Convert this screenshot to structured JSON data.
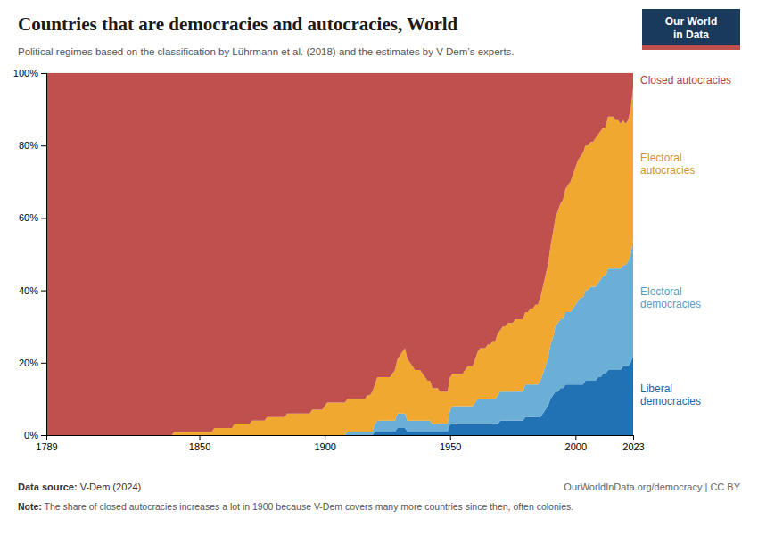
{
  "chart_data": {
    "type": "area",
    "stacked": true,
    "title": "Countries that are democracies and autocracies, World",
    "subtitle": "Political regimes based on the classification by Lührmann et al. (2018) and the estimates by V-Dem’s experts.",
    "annotations": [
      "Data source: V-Dem (2024)",
      "OurWorldInData.org/democracy | CC BY",
      "Note: The share of closed autocracies increases a lot in 1900 because V-Dem covers many more countries since then, often colonies.",
      "Our World",
      "in Data"
    ],
    "x": [
      1789,
      1790,
      1791,
      1792,
      1793,
      1794,
      1795,
      1796,
      1797,
      1798,
      1799,
      1800,
      1801,
      1802,
      1803,
      1804,
      1805,
      1806,
      1807,
      1808,
      1809,
      1810,
      1811,
      1812,
      1813,
      1814,
      1815,
      1816,
      1817,
      1818,
      1819,
      1820,
      1821,
      1822,
      1823,
      1824,
      1825,
      1826,
      1827,
      1828,
      1829,
      1830,
      1831,
      1832,
      1833,
      1834,
      1835,
      1836,
      1837,
      1838,
      1839,
      1840,
      1841,
      1842,
      1843,
      1844,
      1845,
      1846,
      1847,
      1848,
      1849,
      1850,
      1851,
      1852,
      1853,
      1854,
      1855,
      1856,
      1857,
      1858,
      1859,
      1860,
      1861,
      1862,
      1863,
      1864,
      1865,
      1866,
      1867,
      1868,
      1869,
      1870,
      1871,
      1872,
      1873,
      1874,
      1875,
      1876,
      1877,
      1878,
      1879,
      1880,
      1881,
      1882,
      1883,
      1884,
      1885,
      1886,
      1887,
      1888,
      1889,
      1890,
      1891,
      1892,
      1893,
      1894,
      1895,
      1896,
      1897,
      1898,
      1899,
      1900,
      1901,
      1902,
      1903,
      1904,
      1905,
      1906,
      1907,
      1908,
      1909,
      1910,
      1911,
      1912,
      1913,
      1914,
      1915,
      1916,
      1917,
      1918,
      1919,
      1920,
      1921,
      1922,
      1923,
      1924,
      1925,
      1926,
      1927,
      1928,
      1929,
      1930,
      1931,
      1932,
      1933,
      1934,
      1935,
      1936,
      1937,
      1938,
      1939,
      1940,
      1941,
      1942,
      1943,
      1944,
      1945,
      1946,
      1947,
      1948,
      1949,
      1950,
      1951,
      1952,
      1953,
      1954,
      1955,
      1956,
      1957,
      1958,
      1959,
      1960,
      1961,
      1962,
      1963,
      1964,
      1965,
      1966,
      1967,
      1968,
      1969,
      1970,
      1971,
      1972,
      1973,
      1974,
      1975,
      1976,
      1977,
      1978,
      1979,
      1980,
      1981,
      1982,
      1983,
      1984,
      1985,
      1986,
      1987,
      1988,
      1989,
      1990,
      1991,
      1992,
      1993,
      1994,
      1995,
      1996,
      1997,
      1998,
      1999,
      2000,
      2001,
      2002,
      2003,
      2004,
      2005,
      2006,
      2007,
      2008,
      2009,
      2010,
      2011,
      2012,
      2013,
      2014,
      2015,
      2016,
      2017,
      2018,
      2019,
      2020,
      2021,
      2022,
      2023
    ],
    "series": [
      {
        "name": "Liberal\ndemocracies",
        "color": "#2171b5",
        "values": [
          0,
          0,
          0,
          0,
          0,
          0,
          0,
          0,
          0,
          0,
          0,
          0,
          0,
          0,
          0,
          0,
          0,
          0,
          0,
          0,
          0,
          0,
          0,
          0,
          0,
          0,
          0,
          0,
          0,
          0,
          0,
          0,
          0,
          0,
          0,
          0,
          0,
          0,
          0,
          0,
          0,
          0,
          0,
          0,
          0,
          0,
          0,
          0,
          0,
          0,
          0,
          0,
          0,
          0,
          0,
          0,
          0,
          0,
          0,
          0,
          0,
          0,
          0,
          0,
          0,
          0,
          0,
          0,
          0,
          0,
          0,
          0,
          0,
          0,
          0,
          0,
          0,
          0,
          0,
          0,
          0,
          0,
          0,
          0,
          0,
          0,
          0,
          0,
          0,
          0,
          0,
          0,
          0,
          0,
          0,
          0,
          0,
          0,
          0,
          0,
          0,
          0,
          0,
          0,
          0,
          0,
          0,
          0,
          0,
          0,
          0,
          0,
          0,
          0,
          0,
          0,
          0,
          0,
          0,
          0,
          0,
          0,
          0,
          0,
          0,
          0,
          0,
          0,
          0,
          0,
          0,
          1,
          1,
          1,
          1,
          1,
          1,
          1,
          1,
          1,
          2,
          2,
          2,
          2,
          1,
          1,
          1,
          1,
          1,
          1,
          1,
          1,
          1,
          1,
          1,
          1,
          1,
          1,
          1,
          1,
          1,
          3,
          3,
          3,
          3,
          3,
          3,
          3,
          3,
          3,
          3,
          3,
          3,
          3,
          3,
          3,
          3,
          3,
          3,
          3,
          3,
          4,
          4,
          4,
          4,
          4,
          4,
          4,
          4,
          4,
          4,
          5,
          5,
          5,
          5,
          5,
          5,
          5,
          6,
          7,
          8,
          10,
          11,
          12,
          12,
          13,
          13,
          14,
          14,
          14,
          14,
          14,
          14,
          14,
          14,
          15,
          15,
          15,
          15,
          15,
          16,
          16,
          17,
          17,
          18,
          18,
          18,
          18,
          18,
          18,
          19,
          19,
          19,
          20,
          22
        ]
      },
      {
        "name": "Electoral\ndemocracies",
        "color": "#6baed6",
        "values": [
          0,
          0,
          0,
          0,
          0,
          0,
          0,
          0,
          0,
          0,
          0,
          0,
          0,
          0,
          0,
          0,
          0,
          0,
          0,
          0,
          0,
          0,
          0,
          0,
          0,
          0,
          0,
          0,
          0,
          0,
          0,
          0,
          0,
          0,
          0,
          0,
          0,
          0,
          0,
          0,
          0,
          0,
          0,
          0,
          0,
          0,
          0,
          0,
          0,
          0,
          0,
          0,
          0,
          0,
          0,
          0,
          0,
          0,
          0,
          0,
          0,
          0,
          0,
          0,
          0,
          0,
          0,
          0,
          0,
          0,
          0,
          0,
          0,
          0,
          0,
          0,
          0,
          0,
          0,
          0,
          0,
          0,
          0,
          0,
          0,
          0,
          0,
          0,
          0,
          0,
          0,
          0,
          0,
          0,
          0,
          0,
          0,
          0,
          0,
          0,
          0,
          0,
          0,
          0,
          0,
          0,
          0,
          0,
          0,
          0,
          0,
          0,
          0,
          0,
          0,
          0,
          0,
          0,
          0,
          0,
          1,
          1,
          1,
          1,
          1,
          1,
          1,
          1,
          1,
          1,
          1,
          2,
          3,
          3,
          3,
          3,
          3,
          3,
          3,
          3,
          4,
          4,
          4,
          4,
          3,
          3,
          3,
          3,
          3,
          3,
          3,
          3,
          3,
          3,
          2,
          2,
          2,
          2,
          2,
          2,
          2,
          4,
          5,
          5,
          5,
          5,
          5,
          5,
          5,
          5,
          5,
          6,
          7,
          7,
          7,
          7,
          7,
          7,
          7,
          7,
          8,
          8,
          8,
          8,
          8,
          8,
          8,
          8,
          8,
          8,
          8,
          9,
          9,
          9,
          9,
          9,
          9,
          10,
          11,
          12,
          13,
          15,
          16,
          18,
          19,
          19,
          19,
          20,
          20,
          20,
          21,
          22,
          23,
          24,
          24,
          25,
          25,
          26,
          26,
          26,
          26,
          27,
          27,
          27,
          28,
          28,
          28,
          28,
          28,
          28,
          28,
          28,
          29,
          30,
          32
        ]
      },
      {
        "name": "Electoral\nautocracies",
        "color": "#f0a830",
        "values": [
          0,
          0,
          0,
          0,
          0,
          0,
          0,
          0,
          0,
          0,
          0,
          0,
          0,
          0,
          0,
          0,
          0,
          0,
          0,
          0,
          0,
          0,
          0,
          0,
          0,
          0,
          0,
          0,
          0,
          0,
          0,
          0,
          0,
          0,
          0,
          0,
          0,
          0,
          0,
          0,
          0,
          0,
          0,
          0,
          0,
          0,
          0,
          0,
          0,
          0,
          0,
          1,
          1,
          1,
          1,
          1,
          1,
          1,
          1,
          1,
          1,
          1,
          1,
          1,
          1,
          1,
          1,
          2,
          2,
          2,
          2,
          2,
          2,
          2,
          2,
          3,
          3,
          3,
          3,
          3,
          3,
          3,
          4,
          4,
          4,
          4,
          4,
          4,
          5,
          5,
          5,
          5,
          5,
          5,
          5,
          5,
          6,
          6,
          6,
          6,
          6,
          6,
          6,
          6,
          6,
          6,
          7,
          7,
          7,
          7,
          7,
          8,
          9,
          9,
          9,
          9,
          9,
          9,
          9,
          9,
          9,
          9,
          9,
          9,
          9,
          9,
          9,
          9,
          10,
          10,
          11,
          11,
          12,
          12,
          12,
          12,
          12,
          12,
          13,
          14,
          15,
          16,
          17,
          18,
          17,
          16,
          15,
          14,
          14,
          14,
          13,
          12,
          11,
          11,
          10,
          10,
          10,
          9,
          9,
          9,
          9,
          9,
          9,
          9,
          9,
          9,
          9,
          10,
          11,
          11,
          11,
          12,
          13,
          14,
          14,
          14,
          15,
          15,
          16,
          16,
          17,
          17,
          18,
          18,
          19,
          19,
          19,
          20,
          20,
          20,
          20,
          20,
          20,
          21,
          21,
          22,
          22,
          23,
          24,
          25,
          26,
          27,
          29,
          30,
          31,
          32,
          33,
          34,
          35,
          36,
          37,
          38,
          39,
          39,
          40,
          40,
          40,
          40,
          40,
          41,
          41,
          41,
          41,
          41,
          42,
          42,
          42,
          41,
          41,
          40,
          40,
          39,
          39,
          40,
          42
        ]
      },
      {
        "name": "Closed autocracies",
        "color": "#c0504d",
        "values": [
          100,
          100,
          100,
          100,
          100,
          100,
          100,
          100,
          100,
          100,
          100,
          100,
          100,
          100,
          100,
          100,
          100,
          100,
          100,
          100,
          100,
          100,
          100,
          100,
          100,
          100,
          100,
          100,
          100,
          100,
          100,
          100,
          100,
          100,
          100,
          100,
          100,
          100,
          100,
          100,
          100,
          100,
          100,
          100,
          100,
          100,
          100,
          100,
          100,
          100,
          100,
          99,
          99,
          99,
          99,
          99,
          99,
          99,
          99,
          99,
          99,
          99,
          99,
          99,
          99,
          99,
          99,
          98,
          98,
          98,
          98,
          98,
          98,
          98,
          98,
          97,
          97,
          97,
          97,
          97,
          97,
          97,
          96,
          96,
          96,
          96,
          96,
          96,
          95,
          95,
          95,
          95,
          95,
          95,
          95,
          95,
          94,
          94,
          94,
          94,
          94,
          94,
          94,
          94,
          94,
          94,
          93,
          93,
          93,
          93,
          93,
          92,
          91,
          91,
          91,
          91,
          91,
          91,
          91,
          91,
          90,
          90,
          90,
          90,
          90,
          90,
          90,
          90,
          89,
          89,
          88,
          86,
          84,
          84,
          84,
          84,
          84,
          84,
          83,
          82,
          79,
          78,
          77,
          76,
          79,
          80,
          81,
          82,
          82,
          82,
          83,
          84,
          85,
          85,
          87,
          87,
          87,
          88,
          88,
          88,
          88,
          84,
          83,
          83,
          83,
          83,
          83,
          82,
          81,
          81,
          81,
          79,
          77,
          76,
          76,
          76,
          75,
          75,
          74,
          74,
          72,
          71,
          70,
          70,
          69,
          69,
          69,
          68,
          68,
          68,
          68,
          66,
          66,
          65,
          65,
          64,
          64,
          62,
          59,
          56,
          53,
          48,
          44,
          40,
          38,
          36,
          35,
          32,
          31,
          30,
          28,
          26,
          24,
          23,
          22,
          20,
          20,
          19,
          19,
          18,
          17,
          16,
          15,
          15,
          12,
          12,
          12,
          13,
          13,
          14,
          13,
          14,
          13,
          10,
          4
        ]
      }
    ],
    "xlim": [
      1789,
      2023
    ],
    "xticks": [
      1789,
      1850,
      1900,
      1950,
      2000,
      2023
    ],
    "ylim": [
      0,
      100
    ],
    "yticks": [
      {
        "value": 0,
        "label": "0%"
      },
      {
        "value": 20,
        "label": "20%"
      },
      {
        "value": 40,
        "label": "40%"
      },
      {
        "value": 60,
        "label": "60%"
      },
      {
        "value": 80,
        "label": "80%"
      },
      {
        "value": 100,
        "label": "100%"
      }
    ],
    "grid": true
  }
}
